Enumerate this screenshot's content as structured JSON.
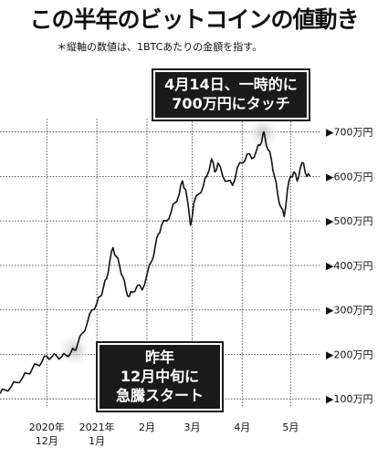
{
  "title": "この半年のビットコインの値動き",
  "subtitle": "＊縦軸の数値は、1BTCあたりの金額を指す。",
  "annotations": [
    {
      "lines": [
        "4月14日、一時的に",
        "700万円にタッチ"
      ]
    },
    {
      "lines": [
        "昨年",
        "12月中旬に",
        "急騰スタート"
      ]
    }
  ],
  "chart_data": {
    "type": "line",
    "title": "この半年のビットコインの値動き",
    "subtitle": "＊縦軸の数値は、1BTCあたりの金額を指す。",
    "y_unit": "万円",
    "ylim": [
      80,
      730
    ],
    "xlim": [
      "2020-11-02",
      "2021-05-20"
    ],
    "y_ticks": [
      {
        "value": 100,
        "label": "▶100万円"
      },
      {
        "value": 200,
        "label": "▶200万円"
      },
      {
        "value": 300,
        "label": "▶300万円"
      },
      {
        "value": 400,
        "label": "▶400万円"
      },
      {
        "value": 500,
        "label": "▶500万円"
      },
      {
        "value": 600,
        "label": "▶600万円"
      },
      {
        "value": 700,
        "label": "▶700万円"
      }
    ],
    "x_ticks": [
      {
        "date": "2020-12-01",
        "lines": [
          "2020年",
          "12月"
        ]
      },
      {
        "date": "2021-01-01",
        "lines": [
          "2021年",
          "1月"
        ]
      },
      {
        "date": "2021-02-01",
        "lines": [
          "2月"
        ]
      },
      {
        "date": "2021-03-01",
        "lines": [
          "3月"
        ]
      },
      {
        "date": "2021-04-01",
        "lines": [
          "4月"
        ]
      },
      {
        "date": "2021-05-01",
        "lines": [
          "5月"
        ]
      }
    ],
    "grid": true,
    "series": [
      {
        "x": [
          "2020-11-02",
          "2020-11-05",
          "2020-11-09",
          "2020-11-12",
          "2020-11-16",
          "2020-11-19",
          "2020-11-22",
          "2020-11-25",
          "2020-11-28",
          "2020-12-01",
          "2020-12-04",
          "2020-12-07",
          "2020-12-10",
          "2020-12-13",
          "2020-12-16",
          "2020-12-18",
          "2020-12-20",
          "2020-12-23",
          "2020-12-26",
          "2020-12-29",
          "2021-01-01",
          "2021-01-03",
          "2021-01-05",
          "2021-01-07",
          "2021-01-09",
          "2021-01-11",
          "2021-01-13",
          "2021-01-15",
          "2021-01-17",
          "2021-01-19",
          "2021-01-21",
          "2021-01-23",
          "2021-01-26",
          "2021-01-29",
          "2021-02-01",
          "2021-02-04",
          "2021-02-06",
          "2021-02-08",
          "2021-02-10",
          "2021-02-13",
          "2021-02-16",
          "2021-02-18",
          "2021-02-21",
          "2021-02-23",
          "2021-02-25",
          "2021-02-28",
          "2021-03-02",
          "2021-03-05",
          "2021-03-08",
          "2021-03-10",
          "2021-03-13",
          "2021-03-15",
          "2021-03-17",
          "2021-03-20",
          "2021-03-23",
          "2021-03-26",
          "2021-03-29",
          "2021-04-01",
          "2021-04-04",
          "2021-04-07",
          "2021-04-10",
          "2021-04-12",
          "2021-04-14",
          "2021-04-15",
          "2021-04-17",
          "2021-04-19",
          "2021-04-21",
          "2021-04-23",
          "2021-04-25",
          "2021-04-27",
          "2021-04-29",
          "2021-05-01",
          "2021-05-03",
          "2021-05-05",
          "2021-05-07",
          "2021-05-09",
          "2021-05-11",
          "2021-05-13"
        ],
        "y": [
          112,
          120,
          128,
          137,
          148,
          157,
          168,
          177,
          184,
          196,
          194,
          197,
          194,
          198,
          205,
          210,
          222,
          248,
          270,
          300,
          315,
          330,
          350,
          370,
          410,
          440,
          420,
          400,
          375,
          345,
          330,
          340,
          355,
          345,
          380,
          410,
          440,
          470,
          490,
          500,
          520,
          540,
          560,
          590,
          570,
          490,
          540,
          560,
          580,
          600,
          640,
          610,
          630,
          600,
          590,
          580,
          620,
          630,
          650,
          640,
          660,
          670,
          698,
          690,
          660,
          640,
          600,
          560,
          530,
          510,
          570,
          600,
          610,
          590,
          620,
          630,
          600,
          600
        ]
      }
    ]
  }
}
